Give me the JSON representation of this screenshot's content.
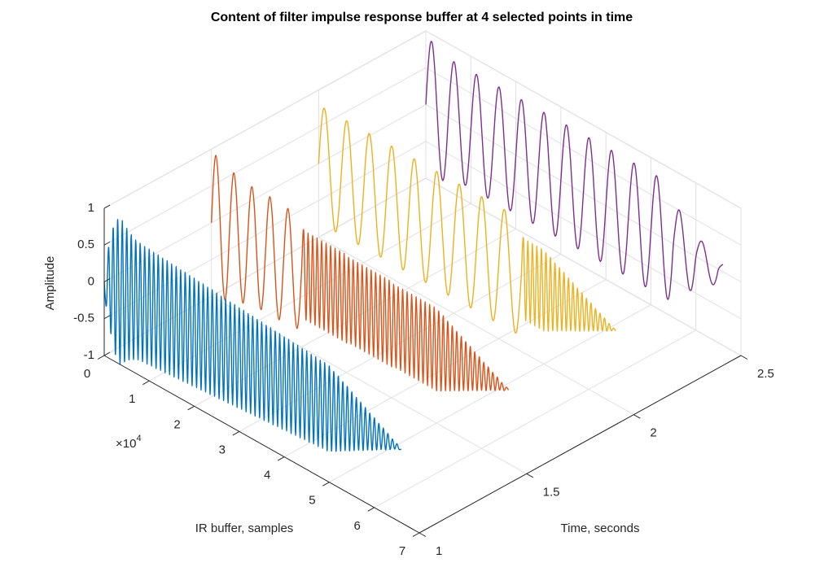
{
  "chart_data": {
    "type": "line3d",
    "title": "Content of filter impulse response buffer at 4 selected points in time",
    "x_label": "IR buffer, samples",
    "y_label": "Time, seconds",
    "z_label": "Amplitude",
    "x_exponent": {
      "base": "×10",
      "power": "4"
    },
    "xlim": [
      0,
      70000
    ],
    "xticks": [
      0,
      {
        "value": 10000,
        "label": "1"
      },
      {
        "value": 20000,
        "label": "2"
      },
      {
        "value": 30000,
        "label": "3"
      },
      {
        "value": 40000,
        "label": "4"
      },
      {
        "value": 50000,
        "label": "5"
      },
      {
        "value": 60000,
        "label": "6"
      },
      {
        "value": 70000,
        "label": "7"
      }
    ],
    "ylim": [
      1,
      2.5
    ],
    "yticks": [
      1,
      1.5,
      2,
      2.5
    ],
    "zlim": [
      -1,
      1
    ],
    "zticks": [
      -1,
      -0.5,
      0,
      0.5,
      1
    ],
    "grid": true,
    "x": [
      0,
      500,
      1000,
      1500,
      2000,
      2500,
      3000,
      3500,
      4000,
      4500,
      5000,
      5500,
      6000,
      6500,
      7000,
      7500,
      8000,
      8500,
      9000,
      9500,
      10000,
      10500,
      11000,
      11500,
      12000,
      12500,
      13000,
      13500,
      14000,
      14500,
      15000,
      15500,
      16000,
      16500,
      17000,
      17500,
      18000,
      18500,
      19000,
      19500,
      20000,
      20500,
      21000,
      21500,
      22000,
      22500,
      23000,
      23500,
      24000,
      24500,
      25000,
      25500,
      26000,
      26500,
      27000,
      27500,
      28000,
      28500,
      29000,
      29500,
      30000,
      30500,
      31000,
      31500,
      32000,
      32500,
      33000,
      33500,
      34000,
      34500,
      35000,
      35500,
      36000,
      36500,
      37000,
      37500,
      38000,
      38500,
      39000,
      39500,
      40000,
      40500,
      41000,
      41500,
      42000,
      42500,
      43000,
      43500,
      44000,
      44500,
      45000,
      45500,
      46000,
      46500,
      47000,
      47500,
      48000,
      48500,
      49000,
      49500,
      50000,
      50500,
      51000,
      51500,
      52000,
      52500,
      53000,
      53500,
      54000,
      54500,
      55000,
      55500,
      56000,
      56500,
      57000,
      57500,
      58000,
      58500,
      59000,
      59500,
      60000,
      60500,
      61000,
      61500,
      62000,
      62500,
      63000,
      63500,
      64000,
      64500,
      65000,
      65500,
      66000
    ],
    "series": [
      {
        "color": "#0072BD",
        "time": 1,
        "values": [
          0,
          -0.3,
          0.5,
          -0.65,
          0.8,
          -0.9,
          0.95,
          -1,
          0.97,
          -0.93,
          0.9,
          -0.87,
          0.85,
          -0.83,
          0.81,
          -0.8,
          0.8,
          -0.79,
          0.79,
          -0.79,
          0.79,
          -0.78,
          0.78,
          -0.78,
          0.78,
          -0.77,
          0.77,
          -0.77,
          0.77,
          -0.76,
          0.76,
          -0.76,
          0.76,
          -0.75,
          0.75,
          -0.75,
          0.75,
          -0.74,
          0.74,
          -0.74,
          0.74,
          -0.73,
          0.73,
          -0.73,
          0.73,
          -0.72,
          0.72,
          -0.72,
          0.72,
          -0.71,
          0.71,
          -0.71,
          0.7,
          -0.7,
          0.7,
          -0.7,
          0.69,
          -0.69,
          0.69,
          -0.69,
          0.68,
          -0.68,
          0.68,
          -0.68,
          0.67,
          -0.67,
          0.67,
          -0.67,
          0.66,
          -0.66,
          0.66,
          -0.66,
          0.65,
          -0.65,
          0.65,
          -0.65,
          0.64,
          -0.64,
          0.64,
          -0.64,
          0.63,
          -0.63,
          0.63,
          -0.63,
          0.62,
          -0.62,
          0.62,
          -0.62,
          0.61,
          -0.61,
          0.61,
          -0.61,
          0.6,
          -0.6,
          0.6,
          -0.6,
          0.59,
          -0.59,
          0.59,
          -0.59,
          0.58,
          -0.56,
          0.54,
          -0.53,
          0.51,
          -0.49,
          0.47,
          -0.45,
          0.44,
          -0.42,
          0.4,
          -0.38,
          0.36,
          -0.34,
          0.33,
          -0.31,
          0.29,
          -0.27,
          0.25,
          -0.24,
          0.22,
          -0.2,
          0.18,
          -0.16,
          0.15,
          -0.13,
          0.11,
          -0.09,
          0.07,
          -0.05,
          0.04,
          -0.02,
          0
        ]
      },
      {
        "color": "#D95319",
        "time": 1.5,
        "values": [
          0,
          0.67,
          0.95,
          0.67,
          0,
          -0.67,
          -0.95,
          -0.67,
          0,
          0.6,
          0.85,
          0.6,
          0,
          -0.6,
          -0.85,
          -0.6,
          0,
          0.57,
          0.8,
          0.57,
          0,
          -0.57,
          -0.8,
          -0.57,
          0,
          0.57,
          0.8,
          0.57,
          0,
          -0.57,
          -0.8,
          -0.57,
          0,
          0.55,
          0.78,
          0.55,
          0,
          -0.55,
          -0.78,
          -0.55,
          0,
          0.6,
          -0.6,
          0.6,
          -0.6,
          0.6,
          -0.6,
          0.6,
          -0.6,
          0.6,
          -0.6,
          0.6,
          -0.6,
          0.6,
          -0.6,
          0.6,
          -0.6,
          0.6,
          -0.6,
          0.6,
          -0.6,
          0.58,
          -0.58,
          0.58,
          -0.58,
          0.58,
          -0.58,
          0.58,
          -0.58,
          0.58,
          -0.58,
          0.58,
          -0.58,
          0.58,
          -0.58,
          0.58,
          -0.58,
          0.58,
          -0.58,
          0.58,
          -0.58,
          0.56,
          -0.56,
          0.56,
          -0.56,
          0.56,
          -0.56,
          0.56,
          -0.56,
          0.56,
          -0.56,
          0.56,
          -0.56,
          0.56,
          -0.56,
          0.56,
          -0.56,
          0.56,
          -0.56,
          0.56,
          -0.56,
          0.54,
          -0.53,
          0.51,
          -0.49,
          0.47,
          -0.46,
          0.44,
          -0.42,
          0.4,
          -0.39,
          0.37,
          -0.35,
          0.33,
          -0.32,
          0.3,
          -0.28,
          0.26,
          -0.25,
          0.23,
          -0.21,
          0.19,
          -0.18,
          0.16,
          -0.14,
          0.12,
          -0.11,
          0.09,
          -0.07,
          0.05,
          -0.04,
          0.02,
          0
        ]
      },
      {
        "color": "#EDB120",
        "time": 2,
        "values": [
          0,
          0.47,
          0.76,
          0.76,
          0.47,
          0,
          -0.47,
          -0.76,
          -0.76,
          -0.47,
          0,
          0.47,
          0.76,
          0.76,
          0.47,
          0,
          -0.47,
          -0.76,
          -0.76,
          -0.47,
          0,
          0.47,
          0.76,
          0.76,
          0.47,
          0,
          -0.47,
          -0.76,
          -0.76,
          -0.47,
          0,
          0.47,
          0.76,
          0.76,
          0.47,
          0,
          -0.47,
          -0.76,
          -0.76,
          -0.47,
          0,
          0.47,
          0.76,
          0.76,
          0.47,
          0,
          -0.47,
          -0.76,
          -0.76,
          -0.47,
          0,
          0.47,
          0.76,
          0.76,
          0.47,
          0,
          -0.47,
          -0.76,
          -0.76,
          -0.47,
          0,
          0.47,
          0.76,
          0.76,
          0.47,
          0,
          -0.47,
          -0.76,
          -0.76,
          -0.47,
          0,
          0.47,
          0.76,
          0.76,
          0.47,
          0,
          -0.47,
          -0.76,
          -0.76,
          -0.47,
          0,
          0.47,
          0.76,
          0.76,
          0.47,
          0,
          -0.47,
          -0.76,
          -0.76,
          -0.47,
          0,
          0.55,
          -0.55,
          0.55,
          -0.55,
          0.55,
          -0.55,
          0.55,
          -0.55,
          0.55,
          -0.55,
          0.53,
          -0.52,
          0.5,
          -0.48,
          0.46,
          -0.45,
          0.43,
          -0.41,
          0.4,
          -0.38,
          0.36,
          -0.34,
          0.33,
          -0.31,
          0.29,
          -0.28,
          0.26,
          -0.24,
          0.22,
          -0.21,
          0.19,
          -0.17,
          0.15,
          -0.14,
          0.12,
          -0.1,
          0.09,
          -0.07,
          0.05,
          -0.03,
          0.02,
          0
        ]
      },
      {
        "color": "#7E2F8E",
        "time": 2.5,
        "values": [
          0,
          0.53,
          0.86,
          0.86,
          0.53,
          0,
          -0.53,
          -0.86,
          -0.86,
          -0.53,
          0,
          0.47,
          0.76,
          0.76,
          0.47,
          0,
          -0.47,
          -0.76,
          -0.76,
          -0.47,
          0,
          0.47,
          0.76,
          0.76,
          0.47,
          0,
          -0.47,
          -0.76,
          -0.76,
          -0.47,
          0,
          0.47,
          0.76,
          0.76,
          0.47,
          0,
          -0.47,
          -0.76,
          -0.76,
          -0.47,
          0,
          0.47,
          0.76,
          0.76,
          0.47,
          0,
          -0.47,
          -0.76,
          -0.76,
          -0.47,
          0,
          0.47,
          0.76,
          0.76,
          0.47,
          0,
          -0.47,
          -0.76,
          -0.76,
          -0.47,
          0,
          0.47,
          0.76,
          0.76,
          0.47,
          0,
          -0.47,
          -0.76,
          -0.76,
          -0.47,
          0,
          0.47,
          0.76,
          0.76,
          0.47,
          0,
          -0.47,
          -0.76,
          -0.76,
          -0.47,
          0,
          0.47,
          0.76,
          0.76,
          0.47,
          0,
          -0.47,
          -0.76,
          -0.76,
          -0.47,
          0,
          0.47,
          0.76,
          0.76,
          0.47,
          0,
          -0.47,
          -0.76,
          -0.76,
          -0.47,
          0,
          0.47,
          0.76,
          0.76,
          0.47,
          0,
          -0.47,
          -0.76,
          -0.76,
          -0.47,
          0,
          0.29,
          0.48,
          0.48,
          0.29,
          0,
          -0.29,
          -0.48,
          -0.48,
          -0.29,
          0,
          0.15,
          0.24,
          0.24,
          0.15,
          0,
          -0.15,
          -0.24,
          -0.24,
          -0.15,
          0,
          0.06,
          0.1
        ]
      }
    ]
  }
}
